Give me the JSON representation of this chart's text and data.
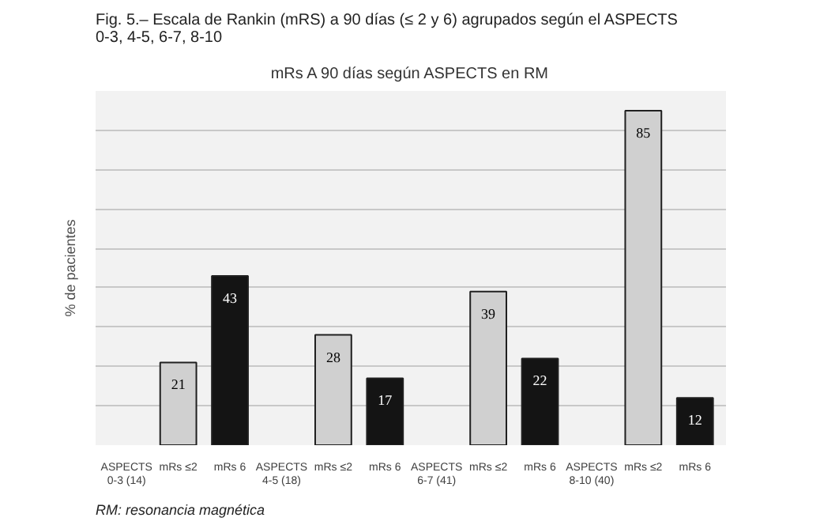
{
  "chart_data": {
    "type": "bar",
    "title": "mRs A 90 días según ASPECTS en RM",
    "ylabel": "% de pacientes",
    "annotations": [
      "Fig. 5.– Escala de Rankin (mRS) a 90 días (≤ 2 y 6) agrupados según el ASPECTS\n0-3, 4-5, 6-7, 8-10",
      "RM: resonancia magnética"
    ],
    "categories": [
      "ASPECTS\n0-3 (14)",
      "mRs ≤2",
      "mRs 6",
      "ASPECTS\n4-5 (18)",
      "mRs ≤2",
      "mRs 6",
      "ASPECTS\n6-7 (41)",
      "mRs ≤2",
      "mRs 6",
      "ASPECTS\n8-10 (40)",
      "mRs ≤2",
      "mRs 6"
    ],
    "values": [
      null,
      21,
      43,
      null,
      28,
      17,
      null,
      39,
      22,
      null,
      85,
      12
    ],
    "colors": [
      null,
      "#d0d0d0",
      "#141414",
      null,
      "#d0d0d0",
      "#141414",
      null,
      "#d0d0d0",
      "#141414",
      null,
      "#d0d0d0",
      "#141414"
    ],
    "data_labels": true,
    "ylim": [
      0,
      90
    ],
    "yticks": [
      {
        "value": 0,
        "label": null
      },
      {
        "value": 10,
        "label": null
      },
      {
        "value": 20,
        "label": null
      },
      {
        "value": 30,
        "label": null
      },
      {
        "value": 40,
        "label": null
      },
      {
        "value": 50,
        "label": null
      },
      {
        "value": 60,
        "label": null
      },
      {
        "value": 70,
        "label": null
      },
      {
        "value": 80,
        "label": null
      },
      {
        "value": 90,
        "label": null
      }
    ],
    "grid": "y",
    "tick_labels": "x"
  }
}
